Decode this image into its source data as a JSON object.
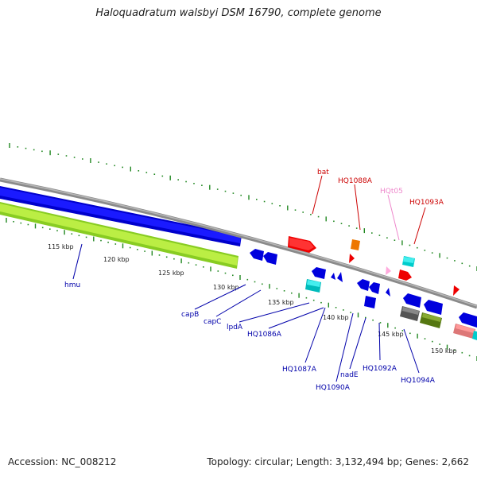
{
  "title": "Haloquadratum walsbyi DSM 16790, complete genome",
  "footer": {
    "accession": "Accession: NC_008212",
    "summary": "Topology: circular; Length: 3,132,494 bp; Genes: 2,662"
  },
  "colors": {
    "backbone": "#8a8a8a",
    "forward_label": "#cc0000",
    "reverse_label": "#0000aa",
    "trna_label": "#ee88cc",
    "cds_blue": "#0000dd",
    "rna_green": "#99dd22",
    "tick_green": "#228822"
  },
  "scale": {
    "unit": "kbp",
    "labels": [
      "115 kbp",
      "120 kbp",
      "125 kbp",
      "130 kbp",
      "135 kbp",
      "140 kbp",
      "145 kbp",
      "150 kbp"
    ]
  },
  "forward_labels": [
    {
      "name": "bat",
      "color": "#cc0000"
    },
    {
      "name": "HQ1088A",
      "color": "#cc0000"
    },
    {
      "name": "HQt05",
      "color": "#ee88cc"
    },
    {
      "name": "HQ1093A",
      "color": "#cc0000"
    }
  ],
  "reverse_labels": [
    {
      "name": "hmu"
    },
    {
      "name": "capB"
    },
    {
      "name": "capC"
    },
    {
      "name": "lpdA"
    },
    {
      "name": "HQ1086A"
    },
    {
      "name": "HQ1087A"
    },
    {
      "name": "HQ1090A"
    },
    {
      "name": "nadE"
    },
    {
      "name": "HQ1092A"
    },
    {
      "name": "HQ1094A"
    }
  ]
}
